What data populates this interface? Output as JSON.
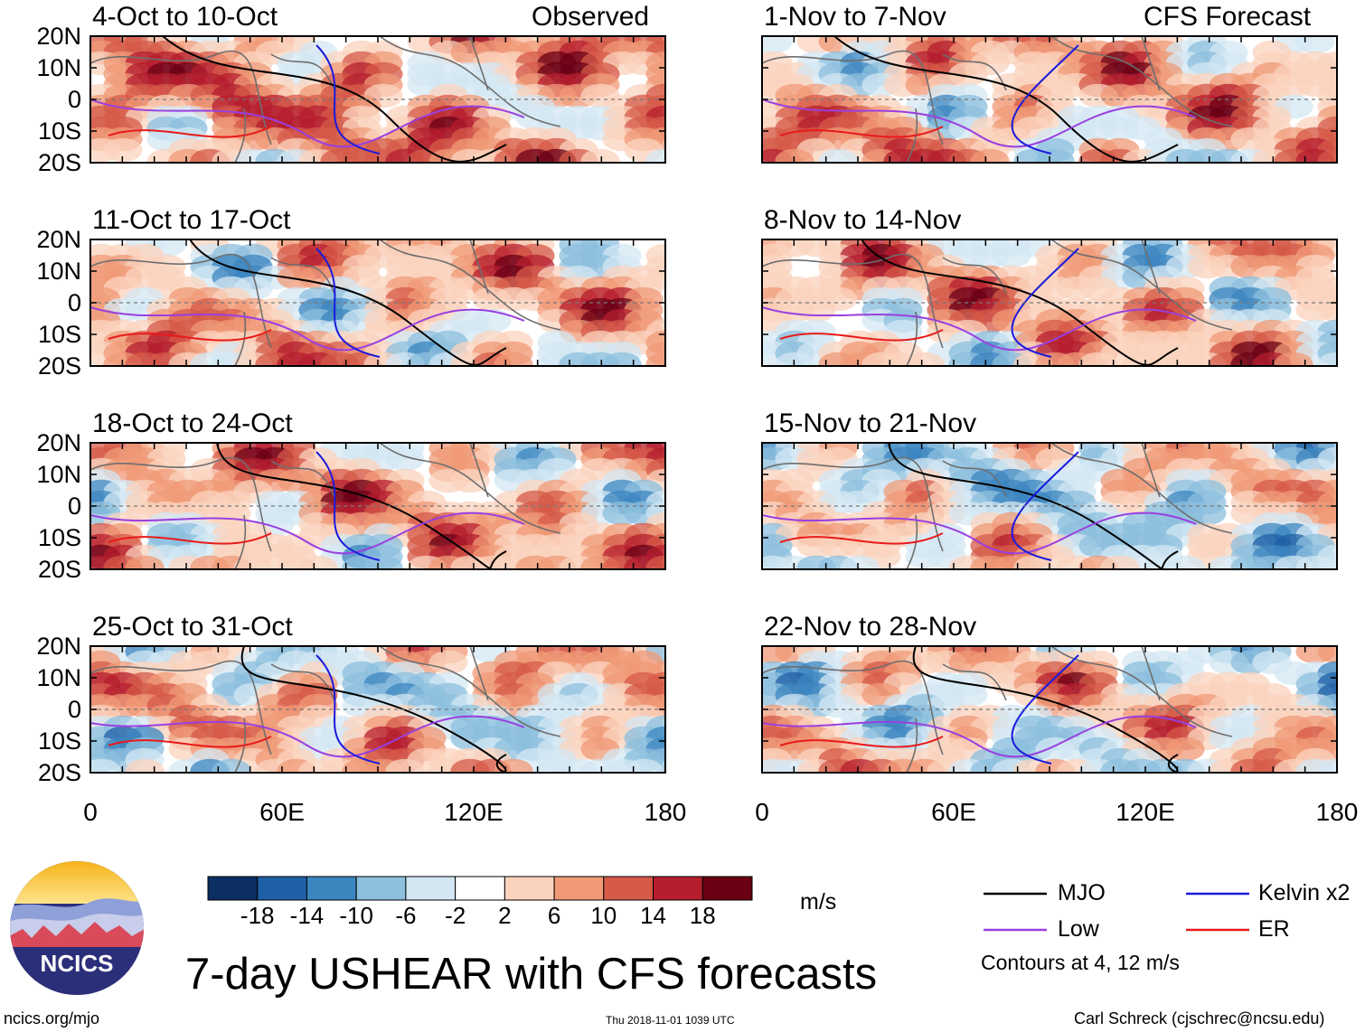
{
  "chart_data": {
    "type": "heatmap",
    "title": "7-day USHEAR with CFS forecasts",
    "variable": "USHEAR",
    "units": "m/s",
    "x_axis": {
      "ticks": [
        "0",
        "60E",
        "120E",
        "180"
      ],
      "range_deg": [
        0,
        180
      ]
    },
    "y_axis": {
      "ticks": [
        "20N",
        "10N",
        "0",
        "10S",
        "20S"
      ],
      "range_deg": [
        -20,
        20
      ]
    },
    "columns": [
      {
        "label": "Observed",
        "panels": [
          "4-Oct to 10-Oct",
          "11-Oct to 17-Oct",
          "18-Oct to 24-Oct",
          "25-Oct to 31-Oct"
        ]
      },
      {
        "label": "CFS Forecast",
        "panels": [
          "1-Nov to 7-Nov",
          "8-Nov to 14-Nov",
          "15-Nov to 21-Nov",
          "22-Nov to 28-Nov"
        ]
      }
    ],
    "colorbar": {
      "tick_labels": [
        "-18",
        "-14",
        "-10",
        "-6",
        "-2",
        "2",
        "6",
        "10",
        "14",
        "18"
      ],
      "colors": [
        "#0b2e63",
        "#1f5fa6",
        "#3c86c0",
        "#8cbfde",
        "#d3e7f3",
        "#ffffff",
        "#fbd3bd",
        "#f09a77",
        "#d65a48",
        "#b51e2e",
        "#6b0015"
      ]
    },
    "legend": [
      {
        "label": "MJO",
        "color": "#000000"
      },
      {
        "label": "Kelvin x2",
        "color": "#1a1adc"
      },
      {
        "label": "Low",
        "color": "#9a3fe0"
      },
      {
        "label": "ER",
        "color": "#e81a1a"
      }
    ],
    "contour_note": "Contours at 4, 12 m/s"
  },
  "footer": {
    "site": "ncics.org/mjo",
    "timestamp": "Thu 2018-11-01 1039 UTC",
    "author": "Carl Schreck (cjschrec@ncsu.edu)",
    "logo_text": "NCICS"
  }
}
